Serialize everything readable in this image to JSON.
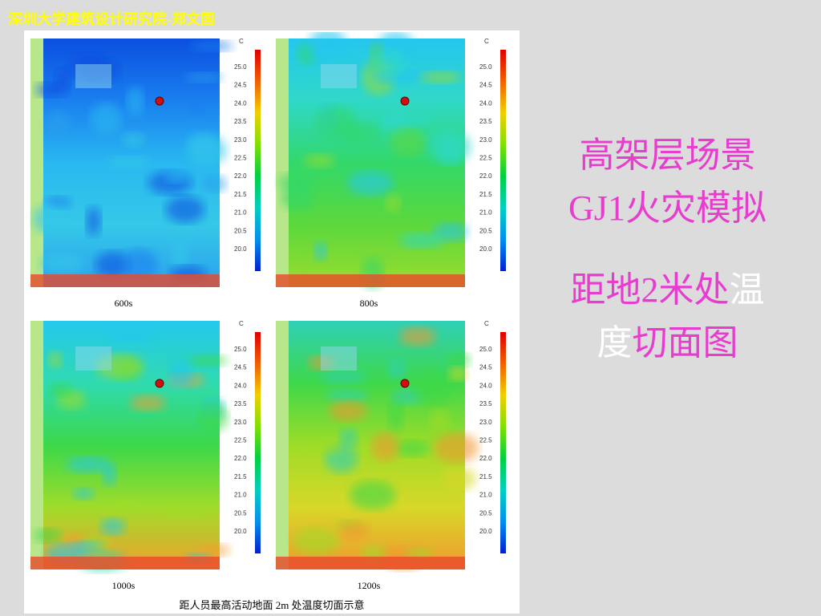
{
  "header": {
    "author": "深圳大学建筑设计研究院-郑文国"
  },
  "figure": {
    "unit": "C",
    "scale_labels": [
      "25.0",
      "24.5",
      "24.0",
      "23.5",
      "23.0",
      "22.5",
      "22.0",
      "21.5",
      "21.0",
      "20.5",
      "20.0"
    ],
    "panels": [
      {
        "caption": "600s"
      },
      {
        "caption": "800s"
      },
      {
        "caption": "1000s"
      },
      {
        "caption": "1200s"
      }
    ],
    "caption": "距人员最高活动地面 2m 处温度切面示意"
  },
  "title": [
    "高架层场景",
    "GJ1火灾模拟",
    "距地2米处",
    "温",
    "度",
    "切面图"
  ]
}
